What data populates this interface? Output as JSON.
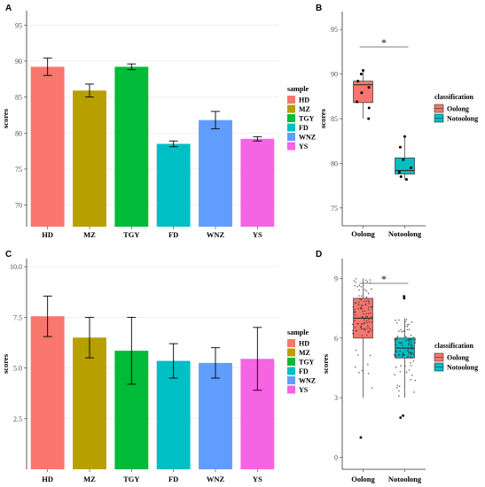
{
  "chart_data": [
    {
      "panel": "A",
      "type": "bar",
      "categories": [
        "HD",
        "MZ",
        "TGY",
        "FD",
        "WNZ",
        "YS"
      ],
      "values": [
        89.2,
        85.9,
        89.2,
        78.5,
        81.8,
        79.2
      ],
      "errors": [
        1.2,
        0.9,
        0.4,
        0.4,
        1.2,
        0.3
      ],
      "colors": [
        "#F8766D",
        "#B79F00",
        "#00BA38",
        "#00BFC4",
        "#619CFF",
        "#F564E3"
      ],
      "ylabel": "scores",
      "ylim": [
        67,
        97
      ],
      "yticks": [
        "70",
        "75",
        "80",
        "85",
        "90",
        "95"
      ],
      "legend_title": "sample",
      "legend_placement": "right",
      "grid": true
    },
    {
      "panel": "B",
      "type": "boxplot",
      "categories": [
        "Oolong",
        "Notoolong"
      ],
      "series": [
        {
          "name": "Oolong",
          "color": "#F8766D",
          "box": {
            "min": 85.0,
            "q1": 86.8,
            "median": 88.8,
            "q3": 89.2,
            "max": 90.4
          },
          "points": [
            85.0,
            86.2,
            86.9,
            87.9,
            88.5,
            89.2,
            90.0,
            90.4
          ]
        },
        {
          "name": "Notoolong",
          "color": "#00BFC4",
          "box": {
            "min": 78.2,
            "q1": 78.8,
            "median": 79.2,
            "q3": 80.6,
            "max": 83.0
          },
          "points": [
            78.2,
            78.5,
            79.0,
            79.5,
            80.4,
            81.8,
            83.0
          ]
        }
      ],
      "ylabel": "scores",
      "ylim": [
        73,
        97
      ],
      "yticks": [
        "75",
        "80",
        "85",
        "90",
        "95"
      ],
      "significance": "*",
      "legend_title": "classification",
      "legend_placement": "right",
      "grid": false
    },
    {
      "panel": "C",
      "type": "bar",
      "categories": [
        "HD",
        "MZ",
        "TGY",
        "FD",
        "WNZ",
        "YS"
      ],
      "values": [
        7.55,
        6.5,
        5.85,
        5.35,
        5.25,
        5.45
      ],
      "errors": [
        1.0,
        1.0,
        1.65,
        0.85,
        0.75,
        1.55
      ],
      "colors": [
        "#F8766D",
        "#B79F00",
        "#00BA38",
        "#00BFC4",
        "#619CFF",
        "#F564E3"
      ],
      "ylabel": "scores",
      "ylim": [
        0,
        10.4
      ],
      "yticks": [
        "2.5",
        "5.0",
        "7.5",
        "10.0"
      ],
      "legend_title": "sample",
      "legend_placement": "right",
      "grid": true
    },
    {
      "panel": "D",
      "type": "boxplot",
      "categories": [
        "Oolong",
        "Notoolong"
      ],
      "series": [
        {
          "name": "Oolong",
          "color": "#F8766D",
          "box": {
            "min": 3.0,
            "q1": 6.0,
            "median": 7.0,
            "q3": 8.0,
            "max": 9.0
          },
          "outliers": [
            1.0
          ]
        },
        {
          "name": "Notoolong",
          "color": "#00BFC4",
          "box": {
            "min": 3.0,
            "q1": 5.0,
            "median": 5.5,
            "q3": 6.0,
            "max": 7.0
          },
          "outliers": [
            2.0,
            2.1,
            8.0,
            8.1
          ]
        }
      ],
      "ylabel": "scores",
      "ylim": [
        -0.6,
        10.0
      ],
      "yticks": [
        "0",
        "3",
        "6",
        "9"
      ],
      "significance": "*",
      "legend_title": "classification",
      "legend_placement": "right",
      "grid": false
    }
  ]
}
